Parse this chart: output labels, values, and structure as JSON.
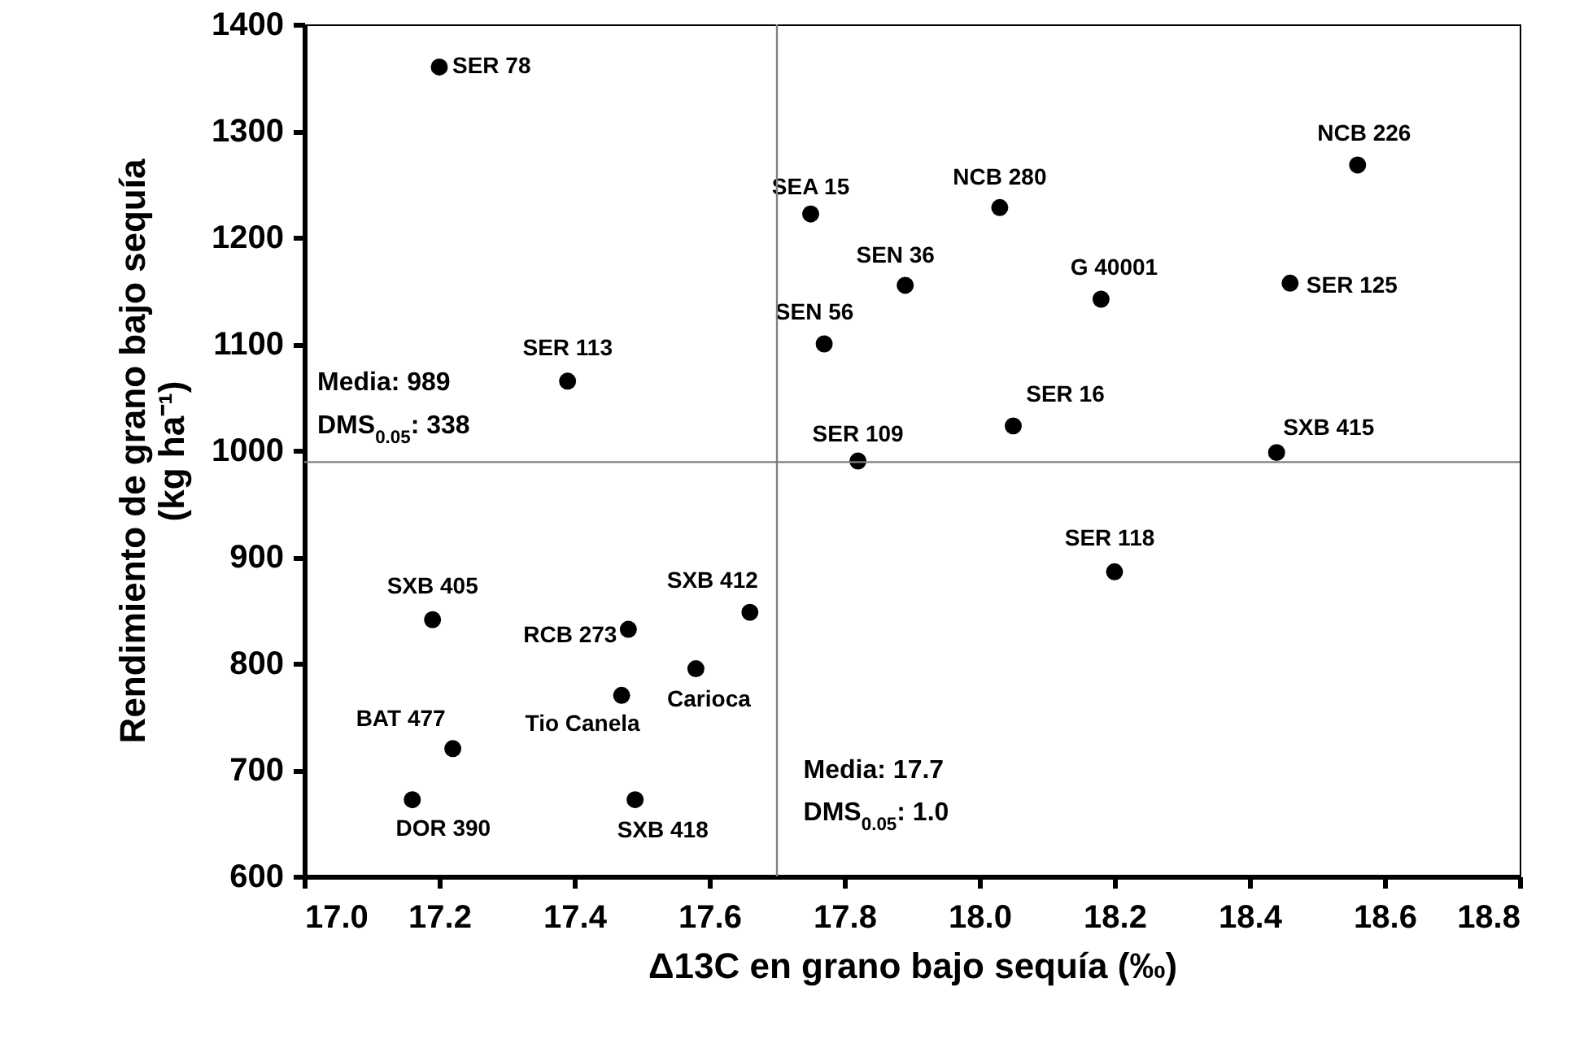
{
  "chart_data": {
    "type": "scatter",
    "xlabel": "Δ13C en grano bajo sequía (‰)",
    "ylabel": "Rendimiento de grano bajo sequía (kg ha⁻¹)",
    "xlim": [
      17.0,
      18.8
    ],
    "xticks": [
      {
        "value": 17.0,
        "label": "17.0"
      },
      {
        "value": 17.2,
        "label": "17.2"
      },
      {
        "value": 17.4,
        "label": "17.4"
      },
      {
        "value": 17.6,
        "label": "17.6"
      },
      {
        "value": 17.8,
        "label": "17.8"
      },
      {
        "value": 18.0,
        "label": "18.0"
      },
      {
        "value": 18.2,
        "label": "18.2"
      },
      {
        "value": 18.4,
        "label": "18.4"
      },
      {
        "value": 18.6,
        "label": "18.6"
      },
      {
        "value": 18.8,
        "label": "18.8"
      }
    ],
    "ylim": [
      600,
      1400
    ],
    "yticks": [
      600,
      700,
      800,
      900,
      1000,
      1100,
      1200,
      1300,
      1400
    ],
    "grid": false,
    "marker": "circle",
    "ref_lines": [
      {
        "axis": "x",
        "value": 17.7,
        "color": "#808080"
      },
      {
        "axis": "y",
        "value": 989,
        "color": "#808080"
      }
    ],
    "annotations": [
      "Media: 989",
      "DMS$_{0.05}$: 338",
      "Media: 17.7",
      "DMS$_{0.05}$: 1.0"
    ],
    "series": [
      {
        "name": "SER 78",
        "color": "#000000",
        "x": [
          17.2
        ],
        "values": [
          1360
        ]
      },
      {
        "name": "SER 113",
        "color": "#000000",
        "x": [
          17.39
        ],
        "values": [
          1065
        ]
      },
      {
        "name": "SEA 15",
        "color": "#000000",
        "x": [
          17.75
        ],
        "values": [
          1222
        ]
      },
      {
        "name": "SEN 56",
        "color": "#000000",
        "x": [
          17.77
        ],
        "values": [
          1100
        ]
      },
      {
        "name": "SER 109",
        "color": "#000000",
        "x": [
          17.82
        ],
        "values": [
          990
        ]
      },
      {
        "name": "SEN 36",
        "color": "#000000",
        "x": [
          17.89
        ],
        "values": [
          1155
        ]
      },
      {
        "name": "NCB 280",
        "color": "#000000",
        "x": [
          18.03
        ],
        "values": [
          1228
        ]
      },
      {
        "name": "G 40001",
        "color": "#000000",
        "x": [
          18.18
        ],
        "values": [
          1142
        ]
      },
      {
        "name": "NCB 226",
        "color": "#000000",
        "x": [
          18.56
        ],
        "values": [
          1268
        ]
      },
      {
        "name": "SER 125",
        "color": "#000000",
        "x": [
          18.46
        ],
        "values": [
          1157
        ]
      },
      {
        "name": "SER 16",
        "color": "#000000",
        "x": [
          18.05
        ],
        "values": [
          1023
        ]
      },
      {
        "name": "SXB 415",
        "color": "#000000",
        "x": [
          18.44
        ],
        "values": [
          998
        ]
      },
      {
        "name": "SER 118",
        "color": "#000000",
        "x": [
          18.2
        ],
        "values": [
          886
        ]
      },
      {
        "name": "SXB 405",
        "color": "#000000",
        "x": [
          17.19
        ],
        "values": [
          841
        ]
      },
      {
        "name": "RCB 273",
        "color": "#000000",
        "x": [
          17.48
        ],
        "values": [
          832
        ]
      },
      {
        "name": "SXB 412",
        "color": "#000000",
        "x": [
          17.66
        ],
        "values": [
          848
        ]
      },
      {
        "name": "Carioca",
        "color": "#000000",
        "x": [
          17.58
        ],
        "values": [
          795
        ]
      },
      {
        "name": "Tio Canela",
        "color": "#000000",
        "x": [
          17.47
        ],
        "values": [
          770
        ]
      },
      {
        "name": "BAT 477",
        "color": "#000000",
        "x": [
          17.22
        ],
        "values": [
          720
        ]
      },
      {
        "name": "DOR 390",
        "color": "#000000",
        "x": [
          17.16
        ],
        "values": [
          672
        ]
      },
      {
        "name": "SXB 418",
        "color": "#000000",
        "x": [
          17.49
        ],
        "values": [
          672
        ]
      }
    ]
  }
}
